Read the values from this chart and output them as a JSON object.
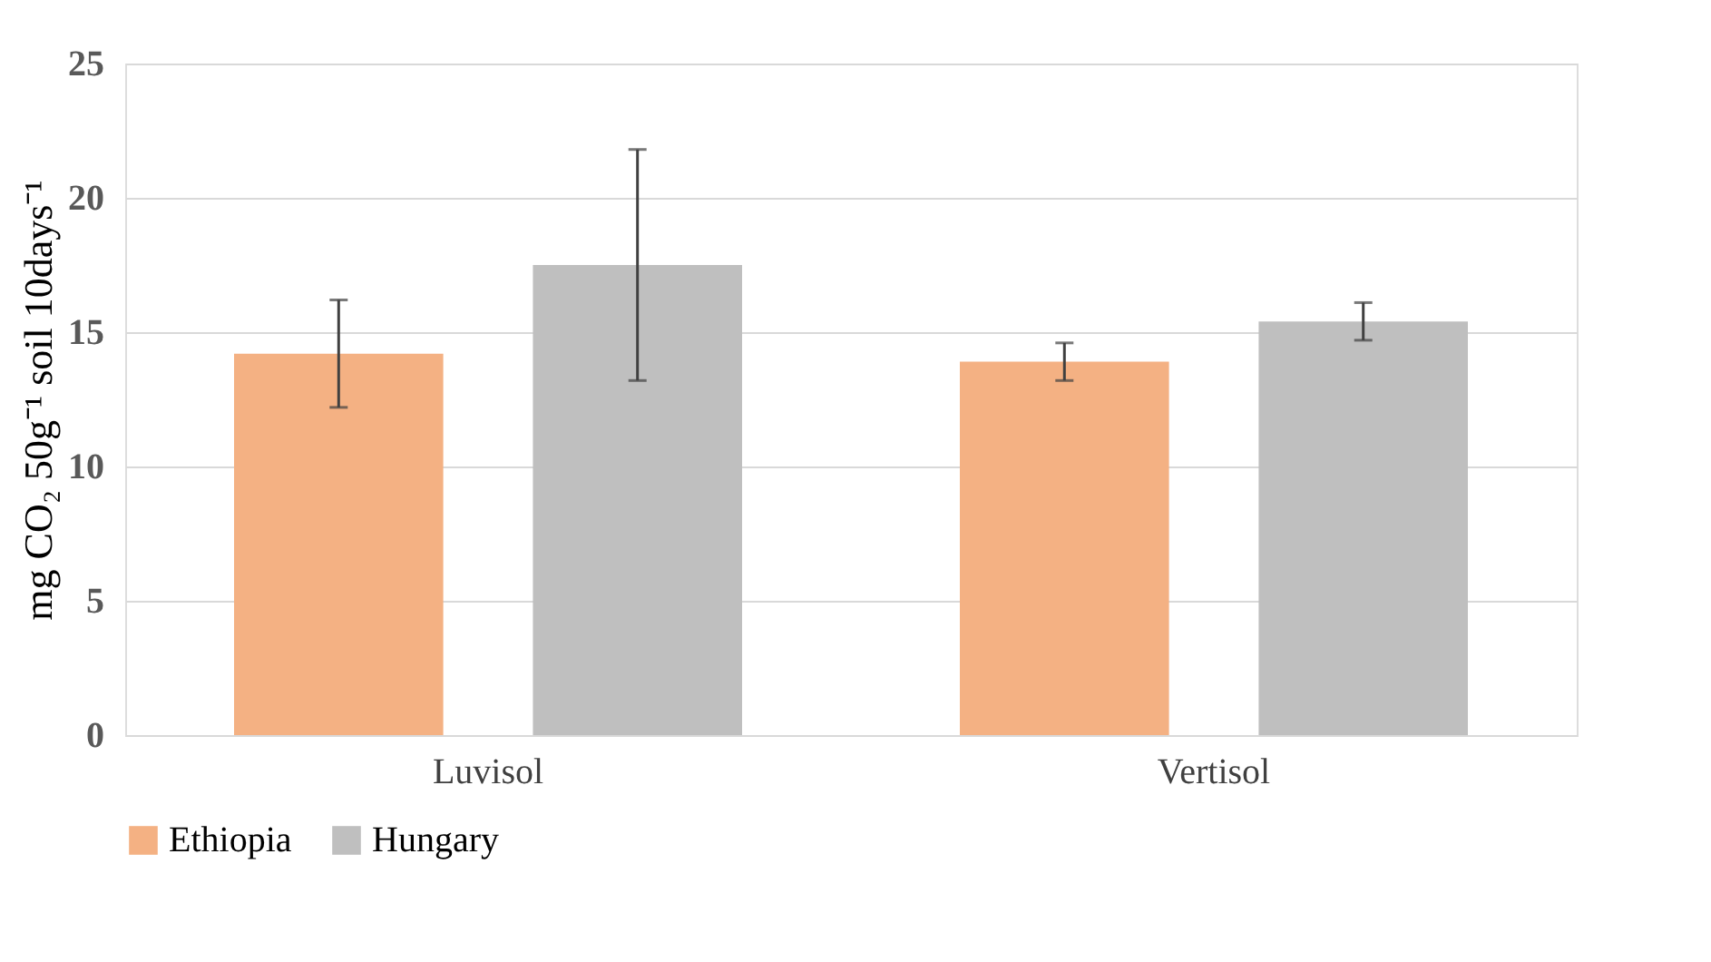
{
  "chart_data": {
    "type": "bar",
    "ylabel": "mg CO₂ 50g⁻¹ soil 10days⁻¹",
    "categories": [
      "Luvisol",
      "Vertisol"
    ],
    "series": [
      {
        "name": "Ethiopia",
        "color": "#f4b183",
        "values": [
          14.2,
          13.9
        ],
        "errors": [
          2.0,
          0.7
        ]
      },
      {
        "name": "Hungary",
        "color": "#bfbfbf",
        "values": [
          17.5,
          15.4
        ],
        "errors": [
          4.3,
          0.7
        ]
      }
    ],
    "ylim": [
      0,
      25
    ],
    "yticks": [
      0,
      5,
      10,
      15,
      20,
      25
    ],
    "grid": "y",
    "legend": "bottom"
  }
}
